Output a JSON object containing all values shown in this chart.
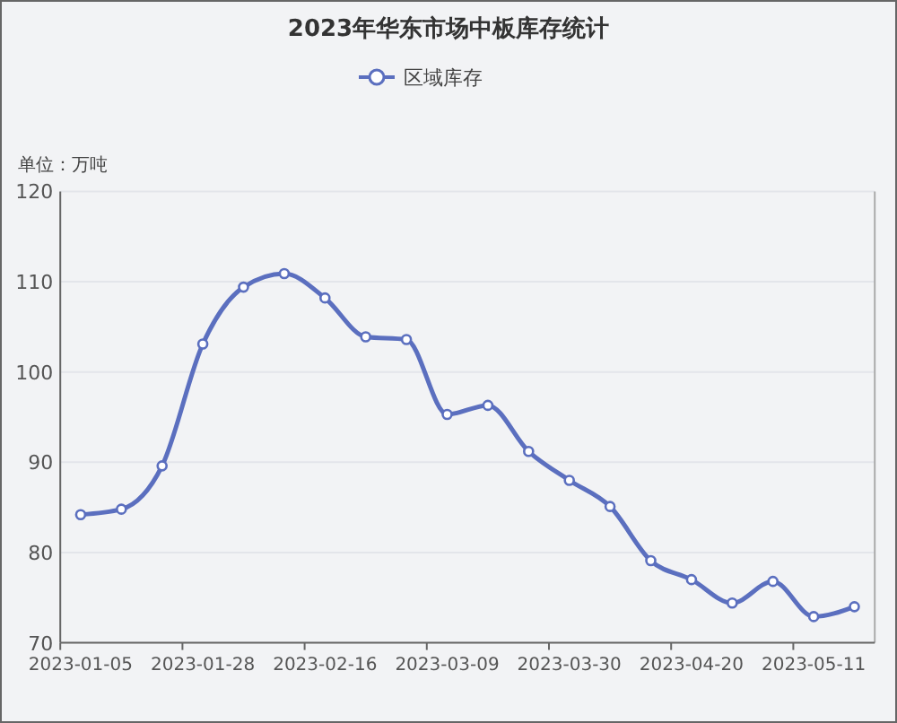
{
  "chart_data": {
    "type": "line",
    "title": "2023年华东市场中板库存统计",
    "ylabel": "单位：万吨",
    "categories": [
      "2023-01-05",
      null,
      null,
      "2023-01-28",
      null,
      null,
      "2023-02-16",
      null,
      null,
      "2023-03-09",
      null,
      null,
      "2023-03-30",
      null,
      null,
      "2023-04-20",
      null,
      null,
      "2023-05-11",
      null
    ],
    "series": [
      {
        "name": "区域库存",
        "color": "#5b6fbf",
        "values": [
          84.2,
          84.8,
          89.6,
          103.1,
          109.4,
          110.9,
          108.2,
          103.9,
          103.6,
          95.3,
          96.3,
          91.2,
          88.0,
          85.1,
          79.1,
          77.0,
          74.4,
          76.8,
          72.9,
          74.0
        ]
      }
    ],
    "ylim": [
      70,
      120
    ],
    "yticks": [
      70,
      80,
      90,
      100,
      110,
      120
    ],
    "grid": "y",
    "legend": "top",
    "marker": "circle",
    "line_style": "solid"
  }
}
